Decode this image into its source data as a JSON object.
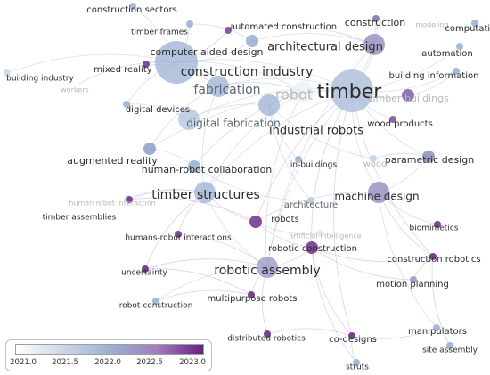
{
  "colors": {
    "link": "#c9a9d6",
    "link_blue": "#b7c7e0",
    "scale_start": "#ffffff",
    "scale_mid": "#9bb2d2",
    "scale_end": "#6a1f82"
  },
  "legend": {
    "ticks": [
      "2021.0",
      "2021.5",
      "2022.0",
      "2022.5",
      "2023.0"
    ]
  },
  "nodes": [
    {
      "id": "timber",
      "label": "timber",
      "year": 2021.9,
      "size": 3
    },
    {
      "id": "robots_center",
      "label": "robot",
      "year": 2021.2,
      "size": 2
    },
    {
      "id": "construction_industry",
      "label": "construction industry",
      "year": 2022.0,
      "size": 3
    },
    {
      "id": "architectural_design",
      "label": "architectural design",
      "year": 2022.3,
      "size": 2
    },
    {
      "id": "fabrication",
      "label": "fabrication",
      "year": 2022.0,
      "size": 2
    },
    {
      "id": "timber_structures",
      "label": "timber structures",
      "year": 2022.0,
      "size": 2
    },
    {
      "id": "robotic_assembly",
      "label": "robotic assembly",
      "year": 2022.2,
      "size": 2
    },
    {
      "id": "industrial_robots",
      "label": "industrial robots",
      "year": 2022.0,
      "size": 2
    },
    {
      "id": "machine_design",
      "label": "machine design",
      "year": 2022.3,
      "size": 2
    },
    {
      "id": "digital_fabrication",
      "label": "digital fabrication",
      "year": 2021.8,
      "size": 2
    },
    {
      "id": "computer_aided_design",
      "label": "computer aided design",
      "year": 2022.0,
      "size": 1
    },
    {
      "id": "human_robot_collaboration",
      "label": "human-robot collaboration",
      "year": 2022.0,
      "size": 1
    },
    {
      "id": "augmented_reality",
      "label": "augmented reality",
      "year": 2022.1,
      "size": 1
    },
    {
      "id": "parametric_design",
      "label": "parametric design",
      "year": 2022.2,
      "size": 1
    },
    {
      "id": "automated_construction",
      "label": "automated construction",
      "year": 2022.7,
      "size": 0
    },
    {
      "id": "construction",
      "label": "construction",
      "year": 2022.4,
      "size": 0
    },
    {
      "id": "automation",
      "label": "automation",
      "year": 2022.0,
      "size": 0
    },
    {
      "id": "building_information",
      "label": "building information",
      "year": 2022.0,
      "size": 0
    },
    {
      "id": "timber_frames",
      "label": "timber frames",
      "year": 2022.0,
      "size": 0
    },
    {
      "id": "construction_sectors",
      "label": "construction sectors",
      "year": 2022.0,
      "size": 0
    },
    {
      "id": "mixed_reality",
      "label": "mixed reality",
      "year": 2022.8,
      "size": 0
    },
    {
      "id": "building_industry",
      "label": "building industry",
      "year": 2021.5,
      "size": 0
    },
    {
      "id": "workers",
      "label": "workers",
      "year": 2021.0,
      "size": 0
    },
    {
      "id": "digital_devices",
      "label": "digital devices",
      "year": 2022.0,
      "size": 0
    },
    {
      "id": "timber_buildings",
      "label": "timber buildings",
      "year": 2022.5,
      "size": 1
    },
    {
      "id": "wood_products",
      "label": "wood products",
      "year": 2022.6,
      "size": 0
    },
    {
      "id": "in_buildings",
      "label": "in-buildings",
      "year": 2022.0,
      "size": 0
    },
    {
      "id": "wood",
      "label": "wood",
      "year": 2021.6,
      "size": 0
    },
    {
      "id": "modeling",
      "label": "modeling",
      "year": 2021.0,
      "size": 0
    },
    {
      "id": "computation",
      "label": "computation",
      "year": 2022.0,
      "size": 0
    },
    {
      "id": "architecture",
      "label": "architecture",
      "year": 2021.7,
      "size": 0
    },
    {
      "id": "robots",
      "label": "robots",
      "year": 2022.8,
      "size": 1
    },
    {
      "id": "human_robot_interaction",
      "label": "human robot interaction",
      "year": 2021.3,
      "size": 0
    },
    {
      "id": "timber_assemblies",
      "label": "timber assemblies",
      "year": 2022.9,
      "size": 0
    },
    {
      "id": "humans_robot_interactions",
      "label": "humans-robot interactions",
      "year": 2022.8,
      "size": 0
    },
    {
      "id": "artificial_intelligence",
      "label": "artificial intelligence",
      "year": 2021.3,
      "size": 0
    },
    {
      "id": "robotic_construction",
      "label": "robotic construction",
      "year": 2022.8,
      "size": 1
    },
    {
      "id": "biomimetics",
      "label": "biomimetics",
      "year": 2022.9,
      "size": 0
    },
    {
      "id": "construction_robotics",
      "label": "construction robotics",
      "year": 2022.9,
      "size": 0
    },
    {
      "id": "uncertainty",
      "label": "uncertainty",
      "year": 2022.9,
      "size": 0
    },
    {
      "id": "multipurpose_robots",
      "label": "multipurpose robots",
      "year": 2022.9,
      "size": 0
    },
    {
      "id": "robot_construction",
      "label": "robot construction",
      "year": 2022.0,
      "size": 0
    },
    {
      "id": "motion_planning",
      "label": "motion planning",
      "year": 2022.1,
      "size": 0
    },
    {
      "id": "distributed_robotics",
      "label": "distributed robotics",
      "year": 2022.9,
      "size": 0
    },
    {
      "id": "co_designs",
      "label": "co-designs",
      "year": 2022.9,
      "size": 0
    },
    {
      "id": "manipulators",
      "label": "manipulators",
      "year": 2022.0,
      "size": 0
    },
    {
      "id": "site_assembly",
      "label": "site assembly",
      "year": 2022.0,
      "size": 0
    },
    {
      "id": "struts",
      "label": "struts",
      "year": 2022.0,
      "size": 0
    }
  ],
  "links": [
    [
      "timber",
      "construction_industry"
    ],
    [
      "timber",
      "architectural_design"
    ],
    [
      "timber",
      "fabrication"
    ],
    [
      "timber",
      "timber_structures"
    ],
    [
      "timber",
      "robotic_assembly"
    ],
    [
      "timber",
      "industrial_robots"
    ],
    [
      "timber",
      "machine_design"
    ],
    [
      "timber",
      "digital_fabrication"
    ],
    [
      "timber",
      "parametric_design"
    ],
    [
      "timber",
      "timber_buildings"
    ],
    [
      "timber",
      "wood_products"
    ],
    [
      "timber",
      "robotic_construction"
    ],
    [
      "timber",
      "robots"
    ],
    [
      "timber",
      "construction"
    ],
    [
      "timber",
      "automation"
    ],
    [
      "timber",
      "building_information"
    ],
    [
      "timber",
      "co_designs"
    ],
    [
      "timber",
      "construction_robotics"
    ],
    [
      "timber",
      "augmented_reality"
    ],
    [
      "robots_center",
      "construction_industry"
    ],
    [
      "robots_center",
      "fabrication"
    ],
    [
      "robots_center",
      "industrial_robots"
    ],
    [
      "robots_center",
      "robotic_assembly"
    ],
    [
      "robots_center",
      "timber_structures"
    ],
    [
      "robots_center",
      "human_robot_collaboration"
    ],
    [
      "construction_industry",
      "automated_construction"
    ],
    [
      "construction_industry",
      "mixed_reality"
    ],
    [
      "construction_industry",
      "computer_aided_design"
    ],
    [
      "construction_industry",
      "building_industry"
    ],
    [
      "construction_industry",
      "digital_devices"
    ],
    [
      "construction_industry",
      "timber_frames"
    ],
    [
      "construction_industry",
      "construction_sectors"
    ],
    [
      "construction_industry",
      "workers"
    ],
    [
      "architectural_design",
      "automated_construction"
    ],
    [
      "architectural_design",
      "construction"
    ],
    [
      "architectural_design",
      "computer_aided_design"
    ],
    [
      "architectural_design",
      "robotic_assembly"
    ],
    [
      "fabrication",
      "augmented_reality"
    ],
    [
      "fabrication",
      "mixed_reality"
    ],
    [
      "fabrication",
      "timber_structures"
    ],
    [
      "timber_structures",
      "timber_assemblies"
    ],
    [
      "timber_structures",
      "robotic_assembly"
    ],
    [
      "timber_structures",
      "humans_robot_interactions"
    ],
    [
      "timber_structures",
      "human_robot_interaction"
    ],
    [
      "timber_structures",
      "uncertainty"
    ],
    [
      "timber_structures",
      "robots"
    ],
    [
      "robotic_assembly",
      "multipurpose_robots"
    ],
    [
      "robotic_assembly",
      "robot_construction"
    ],
    [
      "robotic_assembly",
      "uncertainty"
    ],
    [
      "robotic_assembly",
      "robotic_construction"
    ],
    [
      "robotic_assembly",
      "distributed_robotics"
    ],
    [
      "robotic_assembly",
      "humans_robot_interactions"
    ],
    [
      "robotic_construction",
      "co_designs"
    ],
    [
      "robotic_construction",
      "construction_robotics"
    ],
    [
      "robotic_construction",
      "motion_planning"
    ],
    [
      "robotic_construction",
      "struts"
    ],
    [
      "machine_design",
      "biomimetics"
    ],
    [
      "machine_design",
      "parametric_design"
    ],
    [
      "machine_design",
      "robots"
    ],
    [
      "machine_design",
      "construction_robotics"
    ],
    [
      "machine_design",
      "manipulators"
    ],
    [
      "industrial_robots",
      "digital_fabrication"
    ],
    [
      "industrial_robots",
      "in_buildings"
    ],
    [
      "industrial_robots",
      "wood"
    ],
    [
      "industrial_robots",
      "architecture"
    ],
    [
      "human_robot_collaboration",
      "augmented_reality"
    ],
    [
      "human_robot_collaboration",
      "architecture"
    ],
    [
      "robots",
      "artificial_intelligence"
    ],
    [
      "robots",
      "robotic_construction"
    ],
    [
      "robots",
      "timber_assemblies"
    ],
    [
      "co_designs",
      "struts"
    ],
    [
      "co_designs",
      "distributed_robotics"
    ],
    [
      "co_designs",
      "manipulators"
    ],
    [
      "construction_robotics",
      "site_assembly"
    ],
    [
      "construction_robotics",
      "motion_planning"
    ],
    [
      "multipurpose_robots",
      "uncertainty"
    ],
    [
      "multipurpose_robots",
      "robot_construction"
    ],
    [
      "digital_fabrication",
      "digital_devices"
    ],
    [
      "computer_aided_design",
      "timber_frames"
    ],
    [
      "parametric_design",
      "wood"
    ],
    [
      "timber_buildings",
      "building_information"
    ]
  ]
}
